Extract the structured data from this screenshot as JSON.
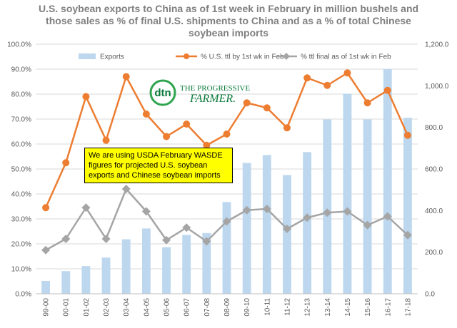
{
  "chart_data": {
    "type": "bar+line",
    "title_lines": [
      "U.S. soybean exports to China as of 1st week in February in million bushels and",
      "those sales as % of final U.S. shipments to China and as a % of total Chinese",
      "soybean imports"
    ],
    "categories": [
      "99-00",
      "00-01",
      "01-02",
      "02-03",
      "03-04",
      "04-05",
      "05-06",
      "06-07",
      "07-08",
      "08-09",
      "09-10",
      "10-11",
      "11-12",
      "12-13",
      "13-14",
      "14-15",
      "15-16",
      "16-17",
      "17-18"
    ],
    "left_axis": {
      "ylim": [
        0,
        100
      ],
      "ticks": [
        "0.0%",
        "10.0%",
        "20.0%",
        "30.0%",
        "40.0%",
        "50.0%",
        "60.0%",
        "70.0%",
        "80.0%",
        "90.0%",
        "100.0%"
      ]
    },
    "right_axis": {
      "ylim": [
        0,
        1200
      ],
      "ticks": [
        "0.0",
        "200.0",
        "400.0",
        "600.0",
        "800.0",
        "1,000.0",
        "1,200.0"
      ]
    },
    "series": [
      {
        "name": "Exports",
        "type": "bar",
        "axis": "right",
        "color": "#bdd7ee",
        "values": [
          62,
          109,
          133,
          174,
          262,
          314,
          224,
          283,
          292,
          441,
          629,
          667,
          571,
          681,
          838,
          962,
          838,
          1080,
          846
        ]
      },
      {
        "name": "% U.S. ttl by 1st wk in Feb",
        "type": "line",
        "axis": "left",
        "color": "#ed7d31",
        "marker": "circle",
        "values": [
          34.5,
          52.5,
          79.0,
          61.5,
          87.0,
          72.0,
          63.0,
          68.0,
          59.5,
          64.0,
          76.5,
          74.5,
          66.5,
          86.5,
          83.5,
          88.5,
          76.5,
          81.5,
          63.5
        ]
      },
      {
        "name": "% ttl final as of 1st wk in Feb",
        "type": "line",
        "axis": "left",
        "color": "#a5a5a5",
        "marker": "diamond",
        "values": [
          17.5,
          22.0,
          34.5,
          22.0,
          42.0,
          33.0,
          21.5,
          26.5,
          21.0,
          29.0,
          33.5,
          34.0,
          26.0,
          30.5,
          32.5,
          33.0,
          27.5,
          31.0,
          23.5
        ]
      }
    ],
    "legend_position": "top",
    "grid": "horizontal",
    "annotation": "We are using USDA February WASDE figures for projected U.S. soybean exports and Chinese soybean imports",
    "logo": {
      "left": "dtn",
      "right_line1": "THE PROGRESSIVE",
      "right_line2": "FARMER."
    }
  }
}
